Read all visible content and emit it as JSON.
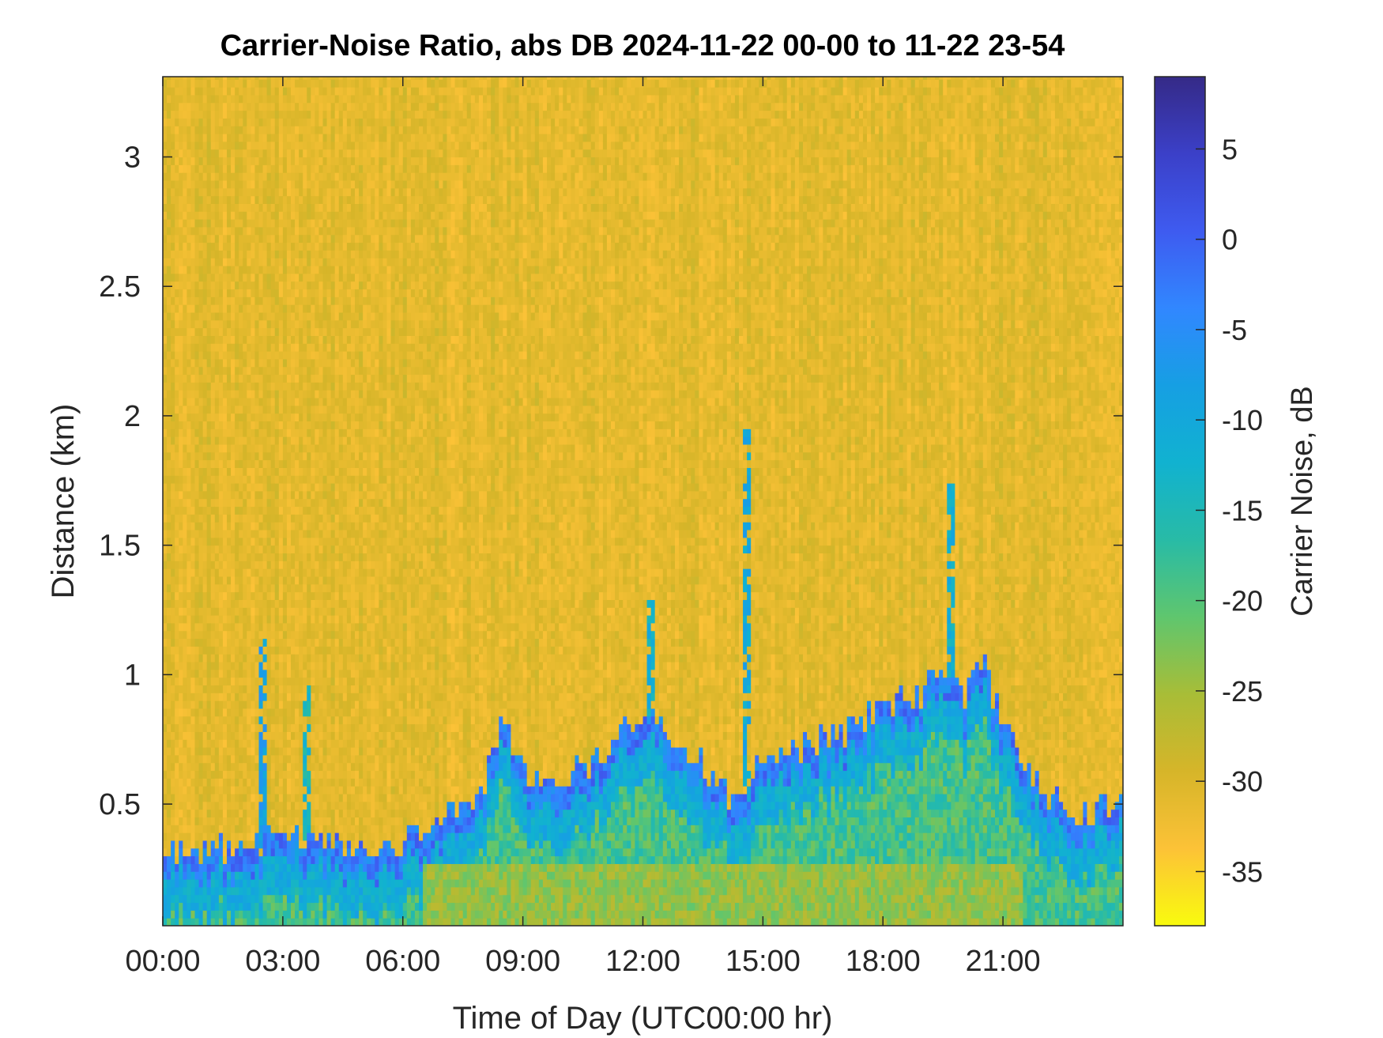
{
  "chart_data": {
    "type": "heatmap",
    "title": "Carrier-Noise Ratio, abs DB 2024-11-22 00-00 to 11-22 23-54",
    "xlabel": "Time of Day (UTC00:00 hr)",
    "ylabel": "Distance (km)",
    "colorbar_label": "Carrier Noise, dB",
    "x_unit": "hours UTC",
    "xlim": [
      0,
      24
    ],
    "ylim": [
      0.03,
      3.31
    ],
    "clim": [
      -38,
      9
    ],
    "colormap": "parula (reversed: yellow = low, dark blue = high)",
    "colormap_stops": [
      "#f9fb0e",
      "#fcc237",
      "#d6b529",
      "#a8bd37",
      "#5fc66e",
      "#28bba6",
      "#11b2d0",
      "#169fe3",
      "#3187ff",
      "#3e5bf0",
      "#3b40c8",
      "#352a87"
    ],
    "x_ticks": [
      {
        "value": 0,
        "label": "00:00"
      },
      {
        "value": 3,
        "label": "03:00"
      },
      {
        "value": 6,
        "label": "06:00"
      },
      {
        "value": 9,
        "label": "09:00"
      },
      {
        "value": 12,
        "label": "12:00"
      },
      {
        "value": 15,
        "label": "15:00"
      },
      {
        "value": 18,
        "label": "18:00"
      },
      {
        "value": 21,
        "label": "21:00"
      }
    ],
    "y_ticks": [
      {
        "value": 0.5,
        "label": "0.5"
      },
      {
        "value": 1.0,
        "label": "1"
      },
      {
        "value": 1.5,
        "label": "1.5"
      },
      {
        "value": 2.0,
        "label": "2"
      },
      {
        "value": 2.5,
        "label": "2.5"
      },
      {
        "value": 3.0,
        "label": "3"
      }
    ],
    "colorbar_ticks": [
      {
        "value": 5,
        "label": "5"
      },
      {
        "value": 0,
        "label": "0"
      },
      {
        "value": -5,
        "label": "-5"
      },
      {
        "value": -10,
        "label": "-10"
      },
      {
        "value": -15,
        "label": "-15"
      },
      {
        "value": -20,
        "label": "-20"
      },
      {
        "value": -25,
        "label": "-25"
      },
      {
        "value": -30,
        "label": "-30"
      },
      {
        "value": -35,
        "label": "-35"
      }
    ],
    "background_value_db": -31,
    "boundary_layer_top_km": {
      "hours": [
        0,
        1,
        2,
        3,
        4,
        5,
        6,
        7,
        8,
        8.5,
        9,
        10,
        11,
        12,
        12.5,
        13,
        14,
        14.5,
        15,
        16,
        17,
        18,
        19,
        19.7,
        20,
        20.5,
        21,
        22,
        23,
        23.9
      ],
      "values": [
        0.32,
        0.32,
        0.34,
        0.38,
        0.36,
        0.34,
        0.36,
        0.44,
        0.56,
        0.85,
        0.62,
        0.62,
        0.68,
        0.85,
        0.8,
        0.74,
        0.56,
        0.52,
        0.66,
        0.72,
        0.78,
        0.88,
        0.92,
        1.05,
        0.9,
        1.05,
        0.8,
        0.55,
        0.45,
        0.52
      ]
    },
    "plumes": [
      {
        "hour": 2.5,
        "top_km": 1.15,
        "value_db": -8
      },
      {
        "hour": 3.6,
        "top_km": 0.95,
        "value_db": -14
      },
      {
        "hour": 12.2,
        "top_km": 1.3,
        "value_db": -12
      },
      {
        "hour": 14.6,
        "top_km": 1.95,
        "value_db": -10
      },
      {
        "hour": 19.7,
        "top_km": 1.75,
        "value_db": -12
      }
    ]
  }
}
